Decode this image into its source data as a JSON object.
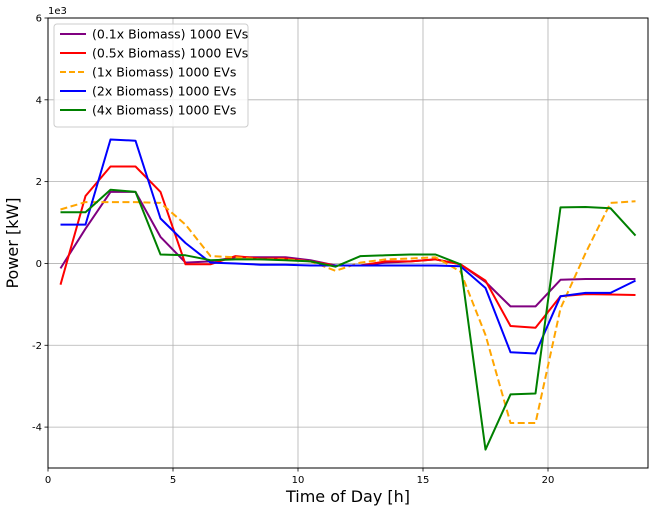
{
  "chart_data": {
    "type": "line",
    "title": "",
    "xlabel": "Time of Day [h]",
    "ylabel": "Power [kW]",
    "y_scale_label": "1e3",
    "xlim": [
      0,
      24
    ],
    "ylim": [
      -5,
      6
    ],
    "x_ticks": [
      0,
      5,
      10,
      15,
      20
    ],
    "y_ticks": [
      -4,
      -2,
      0,
      2,
      4,
      6
    ],
    "grid": true,
    "legend_position": "top-left",
    "x": [
      0.5,
      1.5,
      2.5,
      3.5,
      4.5,
      5.5,
      6.5,
      7.5,
      8.5,
      9.5,
      10.5,
      11.5,
      12.5,
      13.5,
      14.5,
      15.5,
      16.5,
      17.5,
      18.5,
      19.5,
      20.5,
      21.5,
      22.5,
      23.5
    ],
    "series": [
      {
        "name": "(0.1x Biomass) 1000 EVs",
        "color": "#800080",
        "dash": "solid",
        "values": [
          -0.12,
          0.85,
          1.75,
          1.75,
          0.65,
          0.02,
          0.05,
          0.15,
          0.15,
          0.15,
          0.08,
          -0.05,
          -0.05,
          0.02,
          0.05,
          0.1,
          -0.02,
          -0.45,
          -1.05,
          -1.05,
          -0.4,
          -0.38,
          -0.38,
          -0.38
        ]
      },
      {
        "name": "(0.5x Biomass) 1000 EVs",
        "color": "#ff0000",
        "dash": "solid",
        "values": [
          -0.52,
          1.65,
          2.37,
          2.37,
          1.75,
          -0.02,
          -0.02,
          0.18,
          0.12,
          0.12,
          0.05,
          -0.05,
          -0.05,
          0.05,
          0.05,
          0.1,
          -0.02,
          -0.42,
          -1.53,
          -1.57,
          -0.8,
          -0.75,
          -0.76,
          -0.77
        ]
      },
      {
        "name": "(1x Biomass) 1000 EVs",
        "color": "#ffa500",
        "dash": "dashed",
        "values": [
          1.32,
          1.5,
          1.5,
          1.5,
          1.48,
          0.95,
          0.18,
          0.15,
          0.1,
          0.1,
          0.05,
          -0.18,
          0.02,
          0.1,
          0.12,
          0.15,
          -0.2,
          -1.75,
          -3.9,
          -3.9,
          -1.1,
          0.25,
          1.48,
          1.52
        ]
      },
      {
        "name": "(2x Biomass) 1000 EVs",
        "color": "#0000ff",
        "dash": "solid",
        "values": [
          0.95,
          0.95,
          3.03,
          3.0,
          1.1,
          0.5,
          0.02,
          0.0,
          -0.03,
          -0.03,
          -0.05,
          -0.05,
          -0.05,
          -0.05,
          -0.05,
          -0.05,
          -0.07,
          -0.6,
          -2.17,
          -2.2,
          -0.8,
          -0.72,
          -0.72,
          -0.42
        ]
      },
      {
        "name": "(4x Biomass) 1000 EVs",
        "color": "#008000",
        "dash": "solid",
        "values": [
          1.25,
          1.25,
          1.8,
          1.75,
          0.22,
          0.2,
          0.08,
          0.1,
          0.1,
          0.08,
          0.05,
          -0.08,
          0.18,
          0.2,
          0.22,
          0.22,
          -0.02,
          -4.55,
          -3.2,
          -3.18,
          1.37,
          1.38,
          1.35,
          0.68
        ]
      }
    ]
  }
}
